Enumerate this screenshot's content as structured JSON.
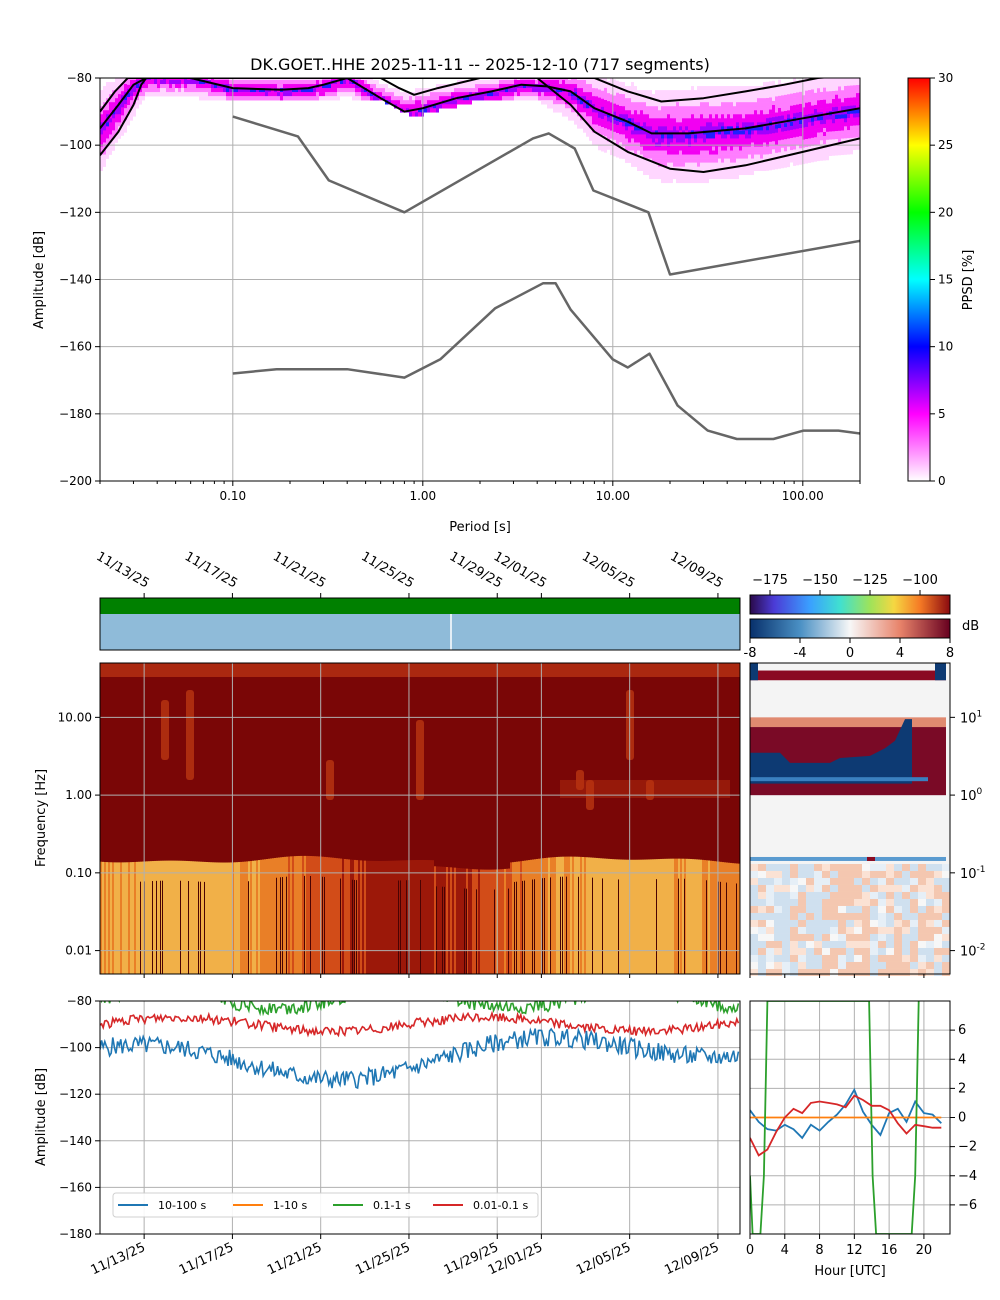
{
  "chart_data": [
    {
      "type": "heatmap",
      "title": "DK.GOET..HHE   2025-11-11 -- 2025-12-10  (717 segments)",
      "xlabel": "Period [s]",
      "ylabel": "Amplitude [dB]",
      "xscale": "log",
      "xlim": [
        0.02,
        200
      ],
      "ylim": [
        -200,
        -80
      ],
      "xticks": [
        "0.10",
        "1.00",
        "10.00",
        "100.00"
      ],
      "yticks": [
        "−200",
        "−180",
        "−160",
        "−140",
        "−120",
        "−100",
        "−80"
      ],
      "grid": true,
      "colorbar": {
        "label": "PPSD [%]",
        "range": [
          0,
          30
        ],
        "ticks": [
          "0",
          "5",
          "10",
          "15",
          "20",
          "25",
          "30"
        ],
        "colors": [
          "#ffffff",
          "#ff00ff",
          "#0000ff",
          "#00ffff",
          "#00ff00",
          "#ffff00",
          "#ff0000"
        ]
      },
      "series": [
        {
          "role": "NHNM",
          "color": "#666666",
          "x": [
            0.1,
            0.22,
            0.32,
            0.8,
            3.8,
            4.6,
            6.3,
            7.9,
            15.4,
            20,
            354.8
          ],
          "y": [
            -91.5,
            -97.4,
            -110.5,
            -120,
            -98,
            -96.5,
            -101,
            -113.5,
            -120,
            -138.5,
            -126
          ]
        },
        {
          "role": "NLNM",
          "color": "#666666",
          "x": [
            0.1,
            0.17,
            0.4,
            0.8,
            1.24,
            2.4,
            4.3,
            5,
            6,
            10,
            12,
            15.6,
            21.9,
            31.6,
            45,
            70,
            101,
            154,
            328
          ],
          "y": [
            -168,
            -166.7,
            -166.7,
            -169.2,
            -163.7,
            -148.6,
            -141.1,
            -141.1,
            -149,
            -163.8,
            -166.2,
            -162.1,
            -177.5,
            -185,
            -187.5,
            -187.5,
            -185,
            -185,
            -187.5
          ]
        },
        {
          "role": "percentile-high",
          "color": "#000000",
          "x": [
            0.02,
            0.024,
            0.028,
            0.032,
            0.035,
            0.05,
            0.08,
            0.1,
            0.18,
            0.25,
            0.3,
            0.4,
            0.6,
            0.8,
            1.0,
            1.5,
            2.3,
            3.3,
            4.5,
            6.0,
            8.0,
            12,
            18,
            30,
            50,
            80,
            120,
            200
          ],
          "y": [
            -90,
            -84,
            -80,
            -80,
            -80,
            -80,
            -80,
            -80,
            -80,
            -80,
            -80,
            -80,
            -80,
            -80,
            -80,
            -80,
            -80,
            -80,
            -80,
            -80,
            -80,
            -84,
            -87,
            -86,
            -84,
            -82,
            -80,
            -79
          ]
        },
        {
          "role": "percentile-mid",
          "color": "#000000",
          "x": [
            0.02,
            0.025,
            0.03,
            0.035,
            0.06,
            0.1,
            0.18,
            0.25,
            0.3,
            0.4,
            0.6,
            0.8,
            1.0,
            1.5,
            2.3,
            3.3,
            4.5,
            6.0,
            8.0,
            12,
            16,
            25,
            50,
            100,
            200
          ],
          "y": [
            -95,
            -88,
            -82,
            -80,
            -80,
            -83,
            -83.5,
            -83,
            -82,
            -80,
            -86,
            -90,
            -89,
            -86,
            -84,
            -82,
            -82.5,
            -84,
            -89,
            -93,
            -96.5,
            -96.5,
            -95,
            -92,
            -89
          ]
        },
        {
          "role": "percentile-low",
          "color": "#000000",
          "x": [
            0.02,
            0.025,
            0.03,
            0.033,
            0.035,
            0.06,
            0.1,
            0.3,
            0.6,
            0.75,
            0.9,
            1.2,
            2,
            4,
            6,
            8,
            12,
            20,
            30,
            50,
            100,
            200
          ],
          "y": [
            -103,
            -96,
            -88,
            -82,
            -80,
            -80,
            -80,
            -80,
            -80,
            -83,
            -85,
            -83,
            -80,
            -80,
            -88,
            -96,
            -102,
            -107,
            -108,
            -106,
            -102,
            -98
          ]
        }
      ]
    },
    {
      "type": "heatmap",
      "ylabel": "Frequency [Hz]",
      "yscale": "log",
      "ylim": [
        0.005,
        50
      ],
      "yticks": [
        "0.01",
        "0.10",
        "1.00",
        "10.00"
      ],
      "xticks": [
        "11/13/25",
        "11/17/25",
        "11/21/25",
        "11/25/25",
        "11/29/25",
        "12/01/25",
        "12/05/25",
        "12/09/25"
      ],
      "xlim_dates": [
        "2025-11-11",
        "2025-12-10"
      ],
      "colorbar_db": {
        "ticks": [
          "−175",
          "−150",
          "−125",
          "−100"
        ],
        "range": [
          -185,
          -85
        ]
      },
      "colorbar_diff": {
        "ticks": [
          "-8",
          "-4",
          "0",
          "4",
          "8"
        ],
        "range": [
          -8,
          8
        ],
        "label": "dB"
      },
      "hourly_panel": {
        "yticks": [
          "10^-2",
          "10^-1",
          "10^0",
          "10^1"
        ],
        "xlim": [
          0,
          23
        ]
      }
    },
    {
      "type": "line",
      "ylabel": "Amplitude [dB]",
      "ylim": [
        -180,
        -80
      ],
      "yticks": [
        "−180",
        "−160",
        "−140",
        "−120",
        "−100",
        "−80"
      ],
      "xticks": [
        "11/13/25",
        "11/17/25",
        "11/21/25",
        "11/25/25",
        "11/29/25",
        "12/01/25",
        "12/05/25",
        "12/09/25"
      ],
      "legend": {
        "placement": "lower-left",
        "entries": [
          "10-100 s",
          "1-10 s",
          "0.1-1 s",
          "0.01-0.1 s"
        ]
      },
      "series": [
        {
          "name": "10-100 s",
          "color": "#1f77b4",
          "mean": -100,
          "amp": 5
        },
        {
          "name": "1-10 s",
          "color": "#ff7f0e",
          "mean": -78,
          "amp": 2
        },
        {
          "name": "0.1-1 s",
          "color": "#2ca02c",
          "mean": -79,
          "amp": 3
        },
        {
          "name": "0.01-0.1 s",
          "color": "#d62728",
          "mean": -88,
          "amp": 2
        }
      ],
      "hourly_panel": {
        "xlabel": "Hour [UTC]",
        "xlim": [
          0,
          23
        ],
        "xticks": [
          "0",
          "4",
          "8",
          "12",
          "16",
          "20"
        ],
        "ylim": [
          -8,
          8
        ],
        "yticks": [
          "−6",
          "−4",
          "−2",
          "0",
          "2",
          "4",
          "6"
        ],
        "series": [
          {
            "name": "10-100 s",
            "color": "#1f77b4",
            "x": [
              0,
              1,
              2,
              3,
              4,
              5,
              6,
              7,
              8,
              9,
              10,
              11,
              12,
              13,
              14,
              15,
              16,
              17,
              18,
              19,
              20,
              21,
              22
            ],
            "y": [
              0.5,
              -0.3,
              -0.8,
              -0.9,
              -0.5,
              -0.8,
              -1.4,
              -0.5,
              -0.9,
              -0.3,
              0.2,
              0.9,
              1.9,
              0.4,
              -0.5,
              -1.2,
              0.3,
              0.6,
              -0.3,
              1.1,
              0.3,
              0.2,
              -0.4
            ]
          },
          {
            "name": "1-10 s",
            "color": "#ff7f0e",
            "x": [
              0,
              1,
              2,
              3,
              4,
              5,
              6,
              7,
              8,
              9,
              10,
              11,
              12,
              13,
              14,
              15,
              16,
              17,
              18,
              19,
              20,
              21,
              22
            ],
            "y": [
              0,
              0,
              0,
              0,
              0,
              0,
              0,
              0,
              0,
              0,
              0,
              0,
              0,
              0,
              0,
              0,
              0,
              0,
              0,
              0,
              0,
              0,
              0
            ]
          },
          {
            "name": "0.1-1 s",
            "color": "#2ca02c",
            "x": [
              0,
              0.3,
              1.2,
              1.6,
              2,
              13.7,
              14.1,
              14.5,
              18.6,
              19,
              19.4
            ],
            "y": [
              -4,
              -8,
              -8,
              -4,
              8,
              8,
              -4,
              -8,
              -8,
              -4,
              8
            ]
          },
          {
            "name": "0.01-0.1 s",
            "color": "#d62728",
            "x": [
              0,
              1,
              2,
              3,
              4,
              5,
              6,
              7,
              8,
              9,
              10,
              11,
              12,
              13,
              14,
              15,
              16,
              17,
              18,
              19,
              20,
              21,
              22
            ],
            "y": [
              -1.4,
              -2.6,
              -2.2,
              -1.0,
              0.0,
              0.6,
              0.3,
              1.0,
              1.1,
              1.0,
              0.9,
              0.7,
              1.5,
              1.2,
              0.8,
              0.8,
              0.5,
              -0.4,
              -1.1,
              -0.5,
              -0.6,
              -0.7,
              -0.7
            ]
          }
        ]
      }
    }
  ]
}
